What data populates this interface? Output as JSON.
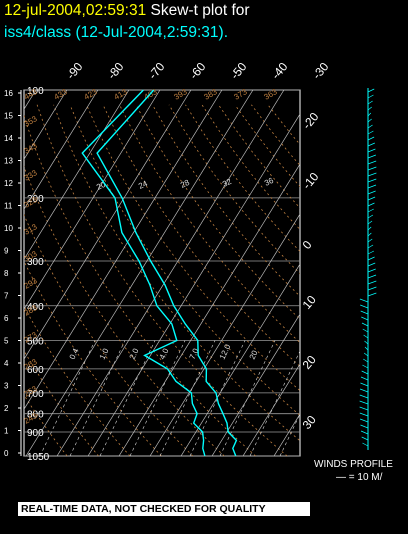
{
  "header": {
    "date_line": "12-jul-2004,02:59:31",
    "plot_label": "Skew-t plot for",
    "subtitle": "iss4/class (12-Jul-2004,2:59:31)."
  },
  "legend": {
    "winds_caption": "WINDS PROFILE",
    "winds_scale": "— = 10 M/"
  },
  "banner": {
    "quality_notice": "REAL-TIME DATA, NOT CHECKED FOR QUALITY"
  },
  "colors": {
    "background": "#000000",
    "title_date": "#ffff00",
    "title_text": "#ffffff",
    "subtitle": "#00ffff",
    "profile": "#00ffff",
    "grid": "#ffffff",
    "adiabat": "#c08040"
  },
  "chart_data": {
    "type": "line",
    "pressure_levels_mb": [
      100,
      200,
      300,
      400,
      500,
      600,
      700,
      800,
      900,
      1050
    ],
    "left_axis_ticks": [
      "16",
      "15",
      "14",
      "13",
      "12",
      "11",
      "10",
      "9",
      "8",
      "7",
      "6",
      "5",
      "4",
      "3",
      "2",
      "1",
      "0"
    ],
    "top_temp_ticks": [
      "-90",
      "-80",
      "-70",
      "-60",
      "-50",
      "-40",
      "-30"
    ],
    "right_temp_ticks": [
      "-20",
      "-10",
      "0",
      "10",
      "20",
      "30"
    ],
    "isotherm_labels_upper": [
      "20",
      "24",
      "28",
      "32",
      "36"
    ],
    "isotherm_labels_lower": [
      "0.4",
      "1.0",
      "2.0",
      "4.0",
      "7.0",
      "12.0",
      "20"
    ],
    "theta_labels": [
      "443",
      "433",
      "423",
      "413",
      "403",
      "393",
      "383",
      "373",
      "363",
      "353",
      "343",
      "333",
      "323",
      "313",
      "303",
      "293",
      "283",
      "273",
      "263",
      "253",
      "243"
    ],
    "series": [
      {
        "points": [
          [
            100,
            -72
          ],
          [
            150,
            -78
          ],
          [
            200,
            -60
          ],
          [
            250,
            -50
          ],
          [
            300,
            -38
          ],
          [
            350,
            -30
          ],
          [
            400,
            -22
          ],
          [
            450,
            -15
          ],
          [
            500,
            -8
          ],
          [
            550,
            -4
          ],
          [
            600,
            0
          ],
          [
            650,
            4
          ],
          [
            700,
            8
          ],
          [
            750,
            12
          ],
          [
            800,
            15
          ],
          [
            850,
            18
          ],
          [
            900,
            21
          ],
          [
            950,
            24
          ],
          [
            1000,
            26
          ],
          [
            1050,
            27
          ]
        ]
      },
      {
        "points": [
          [
            100,
            -76
          ],
          [
            150,
            -82
          ],
          [
            200,
            -63
          ],
          [
            250,
            -54
          ],
          [
            300,
            -42
          ],
          [
            350,
            -35
          ],
          [
            400,
            -27
          ],
          [
            450,
            -20
          ],
          [
            500,
            -14
          ],
          [
            550,
            -22
          ],
          [
            600,
            -12
          ],
          [
            650,
            -6
          ],
          [
            700,
            0
          ],
          [
            750,
            4
          ],
          [
            800,
            6
          ],
          [
            850,
            8
          ],
          [
            900,
            12
          ],
          [
            950,
            14
          ],
          [
            1000,
            16
          ],
          [
            1050,
            17
          ]
        ]
      }
    ]
  }
}
